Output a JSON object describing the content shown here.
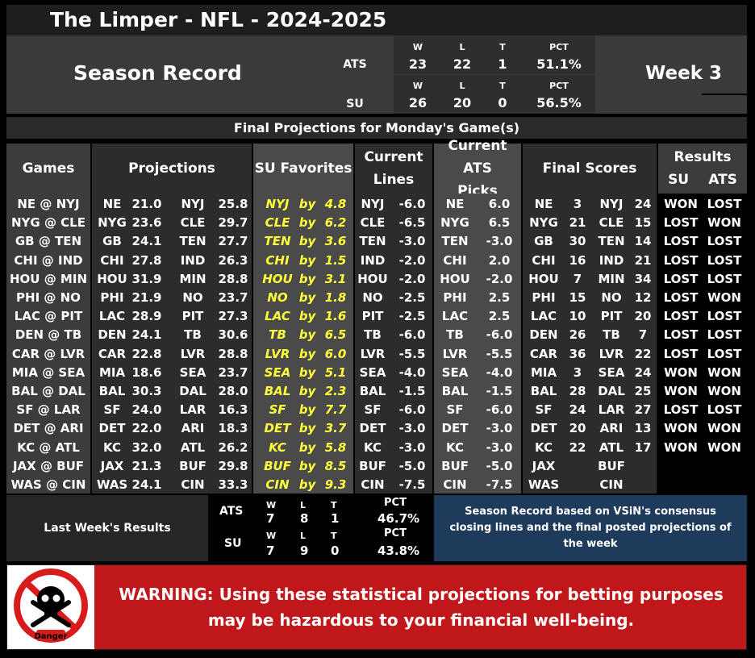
{
  "title": "The Limper - NFL - 2024-2025",
  "season": {
    "label": "Season Record",
    "week": "Week 3",
    "ats": {
      "label": "ATS",
      "w_head": "W",
      "l_head": "L",
      "t_head": "T",
      "pct_head": "PCT",
      "w": "23",
      "l": "22",
      "t": "1",
      "pct": "51.1%"
    },
    "su": {
      "label": "SU",
      "w_head": "W",
      "l_head": "L",
      "t_head": "T",
      "pct_head": "PCT",
      "w": "26",
      "l": "20",
      "t": "0",
      "pct": "56.5%"
    }
  },
  "subtitle": "Final Projections for Monday's Game(s)",
  "headers": {
    "games": "Games",
    "projections": "Projections",
    "su_favorites": "SU Favorites",
    "current_lines_1": "Current",
    "current_lines_2": "Lines",
    "current_ats_1": "Current ATS",
    "current_ats_2": "Picks",
    "final_scores": "Final Scores",
    "results": "Results",
    "results_su": "SU",
    "results_ats": "ATS"
  },
  "rows": [
    {
      "game": "NE @ NYJ",
      "p1t": "NE",
      "p1s": "21.0",
      "p2t": "NYJ",
      "p2s": "25.8",
      "fav": "NYJ",
      "by": "by",
      "margin": "4.8",
      "lt": "NYJ",
      "lv": "-6.0",
      "at": "NE",
      "av": "6.0",
      "f1t": "NE",
      "f1s": "3",
      "f2t": "NYJ",
      "f2s": "24",
      "su": "WON",
      "ats": "LOST"
    },
    {
      "game": "NYG @ CLE",
      "p1t": "NYG",
      "p1s": "23.6",
      "p2t": "CLE",
      "p2s": "29.7",
      "fav": "CLE",
      "by": "by",
      "margin": "6.2",
      "lt": "CLE",
      "lv": "-6.5",
      "at": "NYG",
      "av": "6.5",
      "f1t": "NYG",
      "f1s": "21",
      "f2t": "CLE",
      "f2s": "15",
      "su": "LOST",
      "ats": "WON"
    },
    {
      "game": "GB @ TEN",
      "p1t": "GB",
      "p1s": "24.1",
      "p2t": "TEN",
      "p2s": "27.7",
      "fav": "TEN",
      "by": "by",
      "margin": "3.6",
      "lt": "TEN",
      "lv": "-3.0",
      "at": "TEN",
      "av": "-3.0",
      "f1t": "GB",
      "f1s": "30",
      "f2t": "TEN",
      "f2s": "14",
      "su": "LOST",
      "ats": "LOST"
    },
    {
      "game": "CHI @ IND",
      "p1t": "CHI",
      "p1s": "27.8",
      "p2t": "IND",
      "p2s": "26.3",
      "fav": "CHI",
      "by": "by",
      "margin": "1.5",
      "lt": "IND",
      "lv": "-2.0",
      "at": "CHI",
      "av": "2.0",
      "f1t": "CHI",
      "f1s": "16",
      "f2t": "IND",
      "f2s": "21",
      "su": "LOST",
      "ats": "LOST"
    },
    {
      "game": "HOU @ MIN",
      "p1t": "HOU",
      "p1s": "31.9",
      "p2t": "MIN",
      "p2s": "28.8",
      "fav": "HOU",
      "by": "by",
      "margin": "3.1",
      "lt": "HOU",
      "lv": "-2.0",
      "at": "HOU",
      "av": "-2.0",
      "f1t": "HOU",
      "f1s": "7",
      "f2t": "MIN",
      "f2s": "34",
      "su": "LOST",
      "ats": "LOST"
    },
    {
      "game": "PHI @ NO",
      "p1t": "PHI",
      "p1s": "21.9",
      "p2t": "NO",
      "p2s": "23.7",
      "fav": "NO",
      "by": "by",
      "margin": "1.8",
      "lt": "NO",
      "lv": "-2.5",
      "at": "PHI",
      "av": "2.5",
      "f1t": "PHI",
      "f1s": "15",
      "f2t": "NO",
      "f2s": "12",
      "su": "LOST",
      "ats": "WON"
    },
    {
      "game": "LAC @ PIT",
      "p1t": "LAC",
      "p1s": "28.9",
      "p2t": "PIT",
      "p2s": "27.3",
      "fav": "LAC",
      "by": "by",
      "margin": "1.6",
      "lt": "PIT",
      "lv": "-2.5",
      "at": "LAC",
      "av": "2.5",
      "f1t": "LAC",
      "f1s": "10",
      "f2t": "PIT",
      "f2s": "20",
      "su": "LOST",
      "ats": "LOST"
    },
    {
      "game": "DEN @ TB",
      "p1t": "DEN",
      "p1s": "24.1",
      "p2t": "TB",
      "p2s": "30.6",
      "fav": "TB",
      "by": "by",
      "margin": "6.5",
      "lt": "TB",
      "lv": "-6.0",
      "at": "TB",
      "av": "-6.0",
      "f1t": "DEN",
      "f1s": "26",
      "f2t": "TB",
      "f2s": "7",
      "su": "LOST",
      "ats": "LOST"
    },
    {
      "game": "CAR @ LVR",
      "p1t": "CAR",
      "p1s": "22.8",
      "p2t": "LVR",
      "p2s": "28.8",
      "fav": "LVR",
      "by": "by",
      "margin": "6.0",
      "lt": "LVR",
      "lv": "-5.5",
      "at": "LVR",
      "av": "-5.5",
      "f1t": "CAR",
      "f1s": "36",
      "f2t": "LVR",
      "f2s": "22",
      "su": "LOST",
      "ats": "LOST"
    },
    {
      "game": "MIA @ SEA",
      "p1t": "MIA",
      "p1s": "18.6",
      "p2t": "SEA",
      "p2s": "23.7",
      "fav": "SEA",
      "by": "by",
      "margin": "5.1",
      "lt": "SEA",
      "lv": "-4.0",
      "at": "SEA",
      "av": "-4.0",
      "f1t": "MIA",
      "f1s": "3",
      "f2t": "SEA",
      "f2s": "24",
      "su": "WON",
      "ats": "WON"
    },
    {
      "game": "BAL @ DAL",
      "p1t": "BAL",
      "p1s": "30.3",
      "p2t": "DAL",
      "p2s": "28.0",
      "fav": "BAL",
      "by": "by",
      "margin": "2.3",
      "lt": "BAL",
      "lv": "-1.5",
      "at": "BAL",
      "av": "-1.5",
      "f1t": "BAL",
      "f1s": "28",
      "f2t": "DAL",
      "f2s": "25",
      "su": "WON",
      "ats": "WON"
    },
    {
      "game": "SF @ LAR",
      "p1t": "SF",
      "p1s": "24.0",
      "p2t": "LAR",
      "p2s": "16.3",
      "fav": "SF",
      "by": "by",
      "margin": "7.7",
      "lt": "SF",
      "lv": "-6.0",
      "at": "SF",
      "av": "-6.0",
      "f1t": "SF",
      "f1s": "24",
      "f2t": "LAR",
      "f2s": "27",
      "su": "LOST",
      "ats": "LOST"
    },
    {
      "game": "DET @ ARI",
      "p1t": "DET",
      "p1s": "22.0",
      "p2t": "ARI",
      "p2s": "18.3",
      "fav": "DET",
      "by": "by",
      "margin": "3.7",
      "lt": "DET",
      "lv": "-3.0",
      "at": "DET",
      "av": "-3.0",
      "f1t": "DET",
      "f1s": "20",
      "f2t": "ARI",
      "f2s": "13",
      "su": "WON",
      "ats": "WON"
    },
    {
      "game": "KC @ ATL",
      "p1t": "KC",
      "p1s": "32.0",
      "p2t": "ATL",
      "p2s": "26.2",
      "fav": "KC",
      "by": "by",
      "margin": "5.8",
      "lt": "KC",
      "lv": "-3.0",
      "at": "KC",
      "av": "-3.0",
      "f1t": "KC",
      "f1s": "22",
      "f2t": "ATL",
      "f2s": "17",
      "su": "WON",
      "ats": "WON"
    },
    {
      "game": "JAX @ BUF",
      "p1t": "JAX",
      "p1s": "21.3",
      "p2t": "BUF",
      "p2s": "29.8",
      "fav": "BUF",
      "by": "by",
      "margin": "8.5",
      "lt": "BUF",
      "lv": "-5.0",
      "at": "BUF",
      "av": "-5.0",
      "f1t": "JAX",
      "f1s": "",
      "f2t": "BUF",
      "f2s": "",
      "su": "",
      "ats": ""
    },
    {
      "game": "WAS @ CIN",
      "p1t": "WAS",
      "p1s": "24.1",
      "p2t": "CIN",
      "p2s": "33.3",
      "fav": "CIN",
      "by": "by",
      "margin": "9.3",
      "lt": "CIN",
      "lv": "-7.5",
      "at": "CIN",
      "av": "-7.5",
      "f1t": "WAS",
      "f1s": "",
      "f2t": "CIN",
      "f2s": "",
      "su": "",
      "ats": ""
    }
  ],
  "last_week": {
    "label": "Last Week's Results",
    "ats": {
      "label": "ATS",
      "w_head": "W",
      "l_head": "L",
      "t_head": "T",
      "pct_head": "PCT",
      "w": "7",
      "l": "8",
      "t": "1",
      "pct": "46.7%"
    },
    "su": {
      "label": "SU",
      "w_head": "W",
      "l_head": "L",
      "t_head": "T",
      "pct_head": "PCT",
      "w": "7",
      "l": "9",
      "t": "0",
      "pct": "43.8%"
    }
  },
  "note": "Season Record based on VSiN's consensus closing lines and the final posted projections of the week",
  "warning": {
    "text": "WARNING: Using these statistical projections for betting purposes may be hazardous to your financial well-being.",
    "icon_label": "Danger",
    "icon": "danger-skull-icon"
  },
  "colors": {
    "favorite_text": "#ffff3a",
    "warning_bg": "#c0181a",
    "note_bg": "#1f3b5c"
  }
}
